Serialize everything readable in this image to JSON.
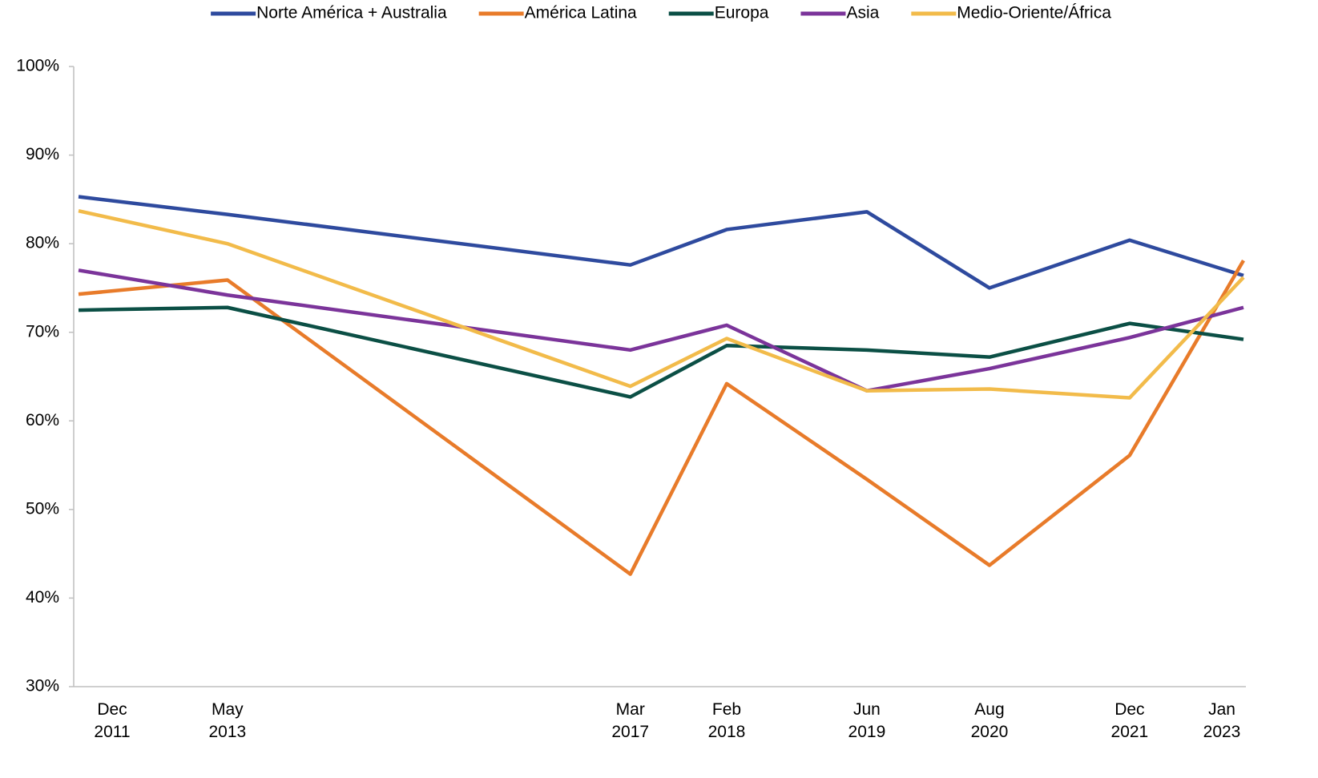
{
  "chart_data": {
    "type": "line",
    "x": [
      "Dec 2011",
      "May 2013",
      "Mar 2017",
      "Feb 2018",
      "Jun 2019",
      "Aug 2020",
      "Dec 2021",
      "Jan 2023"
    ],
    "series": [
      {
        "name": "Norte América + Australia",
        "color": "#2e4a9e",
        "values": [
          85.3,
          83.3,
          77.6,
          81.6,
          83.6,
          75.0,
          80.4,
          76.4
        ]
      },
      {
        "name": "América Latina",
        "color": "#e87b2a",
        "values": [
          74.3,
          75.9,
          42.7,
          64.2,
          53.4,
          43.7,
          56.1,
          78.1
        ]
      },
      {
        "name": "Europa",
        "color": "#0b4f45",
        "values": [
          72.5,
          72.8,
          62.7,
          68.5,
          68.0,
          67.2,
          71.0,
          69.2
        ]
      },
      {
        "name": "Asia",
        "color": "#7b349a",
        "values": [
          77.0,
          74.2,
          68.0,
          70.8,
          63.4,
          65.9,
          69.4,
          72.8
        ]
      },
      {
        "name": "Medio-Oriente/África",
        "color": "#f2bb4a",
        "values": [
          83.7,
          80.0,
          63.9,
          69.3,
          63.4,
          63.6,
          62.6,
          76.2
        ]
      }
    ],
    "ylim": [
      30,
      100
    ],
    "yticks": [
      {
        "value": 30,
        "label": "30%"
      },
      {
        "value": 40,
        "label": "40%"
      },
      {
        "value": 50,
        "label": "50%"
      },
      {
        "value": 60,
        "label": "60%"
      },
      {
        "value": 70,
        "label": "70%"
      },
      {
        "value": 80,
        "label": "80%"
      },
      {
        "value": 90,
        "label": "90%"
      },
      {
        "value": 100,
        "label": "100%"
      }
    ],
    "legend": "top"
  }
}
